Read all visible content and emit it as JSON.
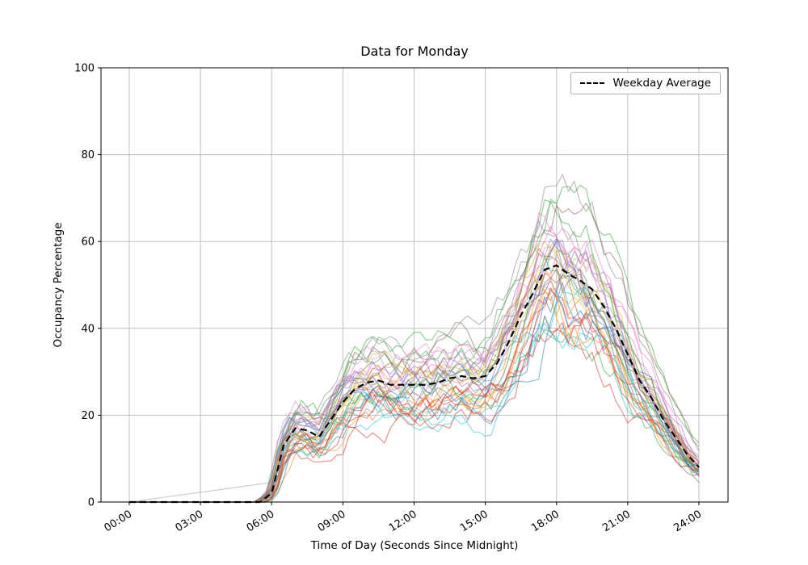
{
  "chart_data": {
    "type": "line",
    "title": "Data for Monday",
    "xlabel": "Time of Day (Seconds Since Midnight)",
    "ylabel": "Occupancy Percentage",
    "xtick_labels": [
      "00:00",
      "03:00",
      "06:00",
      "09:00",
      "12:00",
      "15:00",
      "18:00",
      "21:00",
      "24:00"
    ],
    "xtick_hours": [
      0,
      3,
      6,
      9,
      12,
      15,
      18,
      21,
      24
    ],
    "yticks": [
      0,
      20,
      40,
      60,
      80,
      100
    ],
    "ylim": [
      0,
      100
    ],
    "xlim_hours": [
      0,
      24
    ],
    "grid": true,
    "grid_color": "#bfbfbf",
    "background": "#ffffff",
    "legend": {
      "position": "upper right",
      "entries": [
        {
          "label": "Weekday Average",
          "color": "#000000",
          "linestyle": "dashed"
        }
      ]
    },
    "x_hours": [
      0,
      0.5,
      1,
      1.5,
      2,
      2.5,
      3,
      3.5,
      4,
      4.5,
      5,
      5.5,
      6,
      6.5,
      7,
      7.5,
      8,
      8.5,
      9,
      9.5,
      10,
      10.5,
      11,
      11.5,
      12,
      12.5,
      13,
      13.5,
      14,
      14.5,
      15,
      15.5,
      16,
      16.5,
      17,
      17.5,
      18,
      18.5,
      19,
      19.5,
      20,
      20.5,
      21,
      21.5,
      22,
      22.5,
      23,
      23.5,
      24
    ],
    "average": {
      "name": "Weekday Average",
      "color": "#000000",
      "linestyle": "dashed",
      "line_width": 2.2,
      "values": [
        0,
        0,
        0,
        0,
        0,
        0,
        0,
        0,
        0,
        0,
        0,
        0,
        2,
        13,
        17,
        16.5,
        15,
        19,
        23,
        26,
        27.5,
        28,
        27,
        27,
        27,
        27,
        27.5,
        28.5,
        29,
        28.5,
        29,
        32,
        37,
        43,
        48,
        53.5,
        54.5,
        52.5,
        51,
        49,
        45,
        40,
        34,
        28,
        24,
        19,
        15,
        11,
        8
      ]
    },
    "individual_traces": {
      "count": 38,
      "alpha": 0.5,
      "line_width": 1.2,
      "approx_value_range_at_peak": [
        35,
        79
      ],
      "colors": [
        "#1f77b4",
        "#ff7f0e",
        "#2ca02c",
        "#d62728",
        "#9467bd",
        "#8c564b",
        "#e377c2",
        "#7f7f7f",
        "#bcbd22",
        "#17becf"
      ],
      "outlier_color": "#999999",
      "outlier_ramp_end_hour": 6,
      "outlier_ramp_end_value": 4.5
    }
  }
}
